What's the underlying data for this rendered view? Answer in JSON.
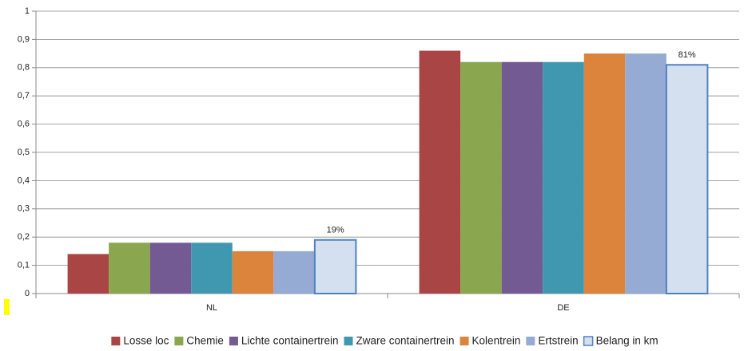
{
  "chart_data": {
    "type": "bar",
    "categories": [
      "NL",
      "DE"
    ],
    "series": [
      {
        "name": "Losse loc",
        "color": "#a94645",
        "values": [
          0.14,
          0.86
        ]
      },
      {
        "name": "Chemie",
        "color": "#8aa64e",
        "values": [
          0.18,
          0.82
        ]
      },
      {
        "name": "Lichte containertrein",
        "color": "#735a93",
        "values": [
          0.18,
          0.82
        ]
      },
      {
        "name": "Zware containertrein",
        "color": "#3f98b0",
        "values": [
          0.18,
          0.82
        ]
      },
      {
        "name": "Kolentrein",
        "color": "#dc833c",
        "values": [
          0.15,
          0.85
        ]
      },
      {
        "name": "Ertstrein",
        "color": "#95abd4",
        "values": [
          0.15,
          0.85
        ]
      },
      {
        "name": "Belang in km",
        "color": "#d4e0f0",
        "stroke": "#4f81bd",
        "values": [
          0.19,
          0.81
        ],
        "value_labels": [
          "19%",
          "81%"
        ]
      }
    ],
    "ylim": [
      0,
      1
    ],
    "yticks": [
      0,
      {
        "value": 0.1,
        "label": "0,1"
      },
      {
        "value": 0.2,
        "label": "0,2"
      },
      {
        "value": 0.3,
        "label": "0,3"
      },
      {
        "value": 0.4,
        "label": "0,4"
      },
      {
        "value": 0.5,
        "label": "0,5"
      },
      {
        "value": 0.6,
        "label": "0,6"
      },
      {
        "value": 0.7,
        "label": "0,7"
      },
      {
        "value": 0.8,
        "label": "0,8"
      },
      {
        "value": 0.9,
        "label": "0,9"
      },
      1
    ],
    "grid": true,
    "legend": "bottom"
  }
}
